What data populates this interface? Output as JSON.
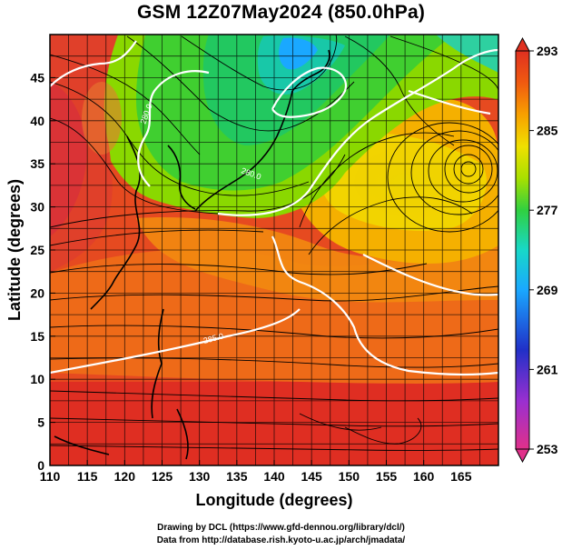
{
  "title": "GSM 12Z07May2024 (850.0hPa)",
  "x_axis": {
    "label": "Longitude (degrees)",
    "ticks": [
      "110",
      "115",
      "120",
      "125",
      "130",
      "135",
      "140",
      "145",
      "150",
      "155",
      "160",
      "165"
    ],
    "range": [
      110,
      170
    ]
  },
  "y_axis": {
    "label": "Latitude (degrees)",
    "ticks": [
      "0",
      "5",
      "10",
      "15",
      "20",
      "25",
      "30",
      "35",
      "40",
      "45"
    ],
    "range": [
      0,
      50
    ]
  },
  "colorbar": {
    "labels": [
      "293",
      "285",
      "277",
      "269",
      "261",
      "253"
    ],
    "range": [
      253,
      293
    ],
    "colors": [
      "#e0308a",
      "#9a2fd0",
      "#2030c8",
      "#1aa8ff",
      "#18d8c8",
      "#30d040",
      "#a8e000",
      "#f0e000",
      "#f8a000",
      "#f05a10",
      "#e03020"
    ]
  },
  "contours": {
    "labels": [
      "280.0",
      "280.0",
      "285.0"
    ],
    "color": "#ffffff"
  },
  "cyclone_center": {
    "lon": 165,
    "lat": 36
  },
  "footer": {
    "line1": "Drawing by DCL (https://www.gfd-dennou.org/library/dcl/)",
    "line2": "Data from http://database.rish.kyoto-u.ac.jp/arch/jmadata/"
  }
}
